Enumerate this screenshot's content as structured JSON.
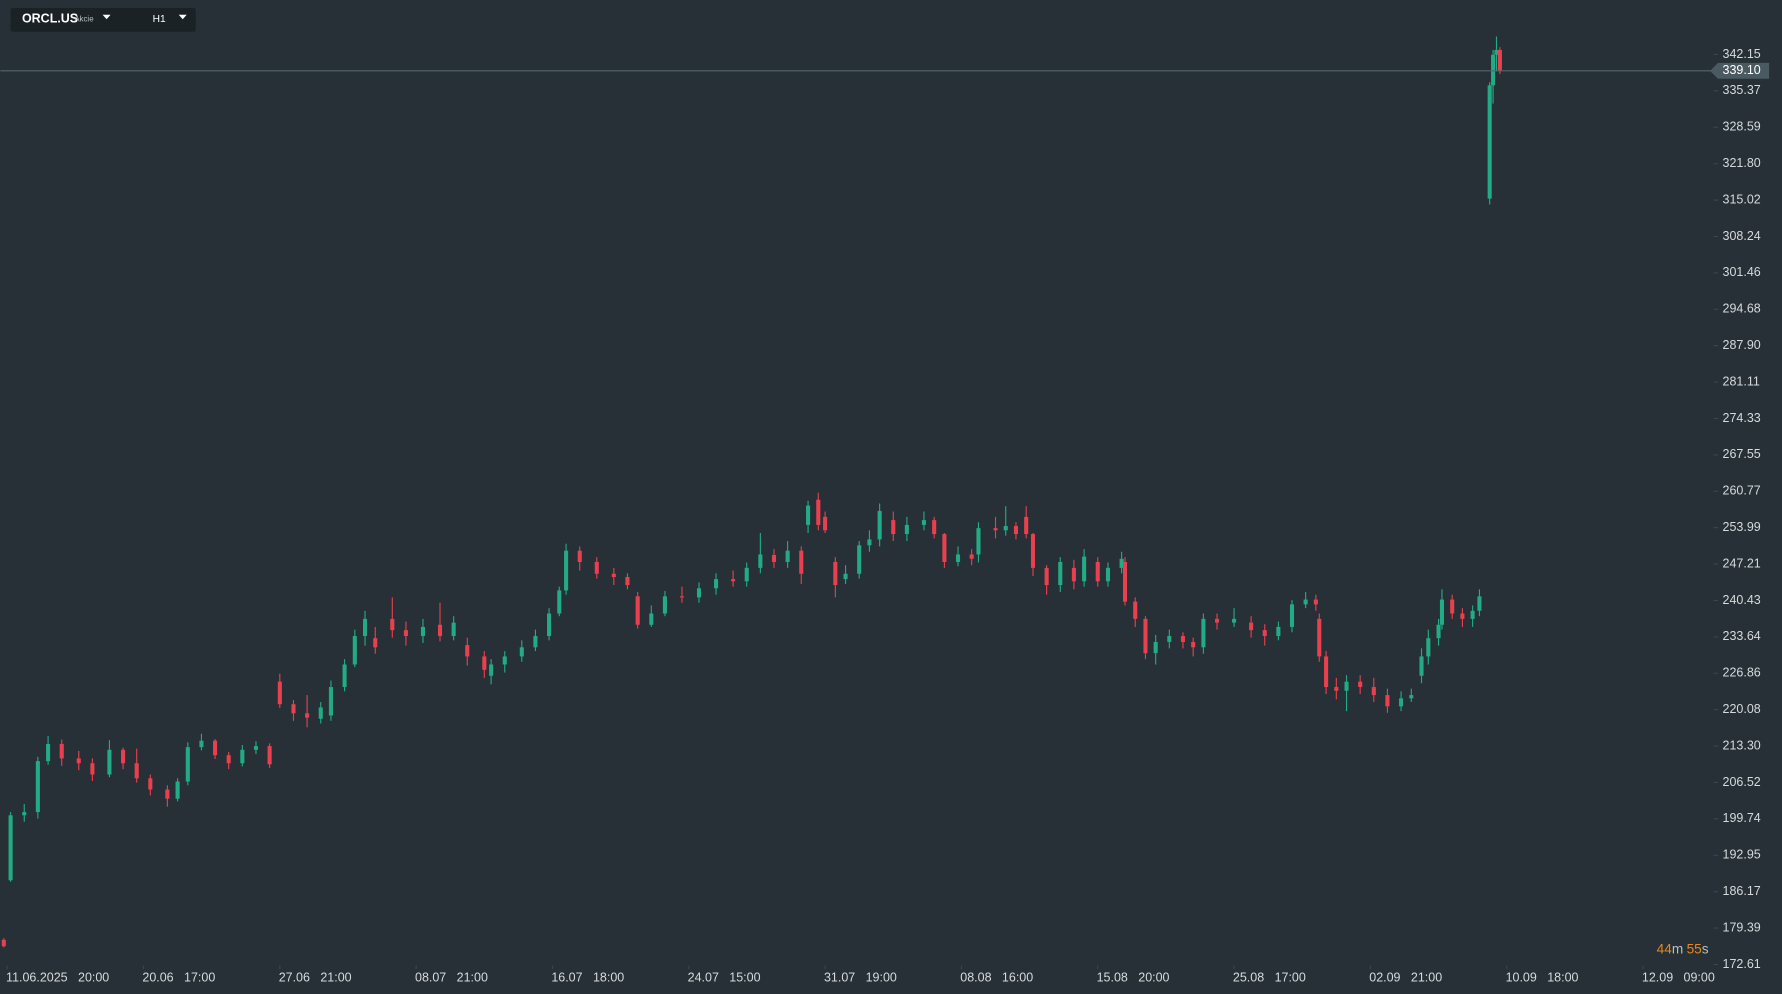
{
  "header": {
    "symbol": "ORCL.US",
    "asset_type": "Akcie",
    "timeframe": "H1"
  },
  "countdown": {
    "minutes": "44",
    "minutes_unit": "m",
    "seconds": "55",
    "seconds_unit": "s"
  },
  "chart_data": {
    "type": "candlestick",
    "up_color": "#22ab84",
    "down_color": "#e8404e",
    "price_line": {
      "value": 339.1,
      "label": "339.10"
    },
    "x": [
      1,
      3,
      7,
      11,
      14,
      18,
      23,
      27,
      32,
      36,
      40,
      44,
      49,
      52,
      55,
      59,
      63,
      67,
      71,
      75,
      79,
      82,
      86,
      90,
      94,
      97,
      101,
      104,
      107,
      110,
      115,
      119,
      124,
      129,
      133,
      137,
      142,
      144,
      148,
      153,
      157,
      161,
      164,
      166,
      170,
      175,
      180,
      184,
      187,
      191,
      195,
      200,
      205,
      210,
      215,
      219,
      223,
      227,
      231,
      235,
      237,
      240,
      242,
      245,
      248,
      252,
      255,
      258,
      262,
      266,
      271,
      274,
      277,
      281,
      285,
      287,
      292,
      295,
      298,
      301,
      303,
      307,
      311,
      315,
      318,
      322,
      325,
      329,
      330,
      333,
      336,
      339,
      343,
      347,
      350,
      353,
      357,
      362,
      367,
      371,
      375,
      379,
      383,
      386,
      387,
      389,
      392,
      395,
      399,
      403,
      407,
      411,
      414,
      417,
      419,
      422,
      423,
      426,
      429,
      432,
      434,
      437,
      438,
      439,
      440
    ],
    "open": [
      177.2,
      188.3,
      200.4,
      201.0,
      210.5,
      213.7,
      211.0,
      210.1,
      208.0,
      212.6,
      210.1,
      207.3,
      205.2,
      203.5,
      206.7,
      213.1,
      214.3,
      211.6,
      210.1,
      212.6,
      213.3,
      225.3,
      221.1,
      219.4,
      218.4,
      219.0,
      224.3,
      228.5,
      233.8,
      233.4,
      237.0,
      234.9,
      233.8,
      235.9,
      233.8,
      232.1,
      230.0,
      226.4,
      228.5,
      230.0,
      231.7,
      233.8,
      238.0,
      242.3,
      249.7,
      247.6,
      245.4,
      244.8,
      241.2,
      235.9,
      238.0,
      241.2,
      241.0,
      242.7,
      244.4,
      244.0,
      246.5,
      248.9,
      247.6,
      249.7,
      254.5,
      259.2,
      256.0,
      247.6,
      244.4,
      245.4,
      250.7,
      251.8,
      255.4,
      252.8,
      254.5,
      255.4,
      252.8,
      247.6,
      249.0,
      249.0,
      253.9,
      253.5,
      254.3,
      256.0,
      252.8,
      246.5,
      243.3,
      246.5,
      244.0,
      247.6,
      244.0,
      246.5,
      247.6,
      240.2,
      237.0,
      230.6,
      232.7,
      233.8,
      232.7,
      231.7,
      237.0,
      236.3,
      236.3,
      234.9,
      233.8,
      235.5,
      239.7,
      240.6,
      237.0,
      230.0,
      224.3,
      223.6,
      225.3,
      224.3,
      222.8,
      220.7,
      222.2,
      226.4,
      230.0,
      233.4,
      235.9,
      240.6,
      238.0,
      237.0,
      238.5,
      315.3,
      336.4,
      342.1,
      343.0
    ],
    "high": [
      177.5,
      201.0,
      202.5,
      211.3,
      215.2,
      214.5,
      212.4,
      211.0,
      214.4,
      213.0,
      212.8,
      208.0,
      206.0,
      207.3,
      214.0,
      215.6,
      214.6,
      212.2,
      213.5,
      214.2,
      213.8,
      226.8,
      221.9,
      222.8,
      221.5,
      225.5,
      229.5,
      235.0,
      238.5,
      235.5,
      241.0,
      236.5,
      237.0,
      240.0,
      237.5,
      233.5,
      231.0,
      229.5,
      231.0,
      233.0,
      235.0,
      239.0,
      243.0,
      251.0,
      250.5,
      248.5,
      246.5,
      245.5,
      242.0,
      239.5,
      242.2,
      243.0,
      243.8,
      245.5,
      246.0,
      247.5,
      253.0,
      250.0,
      251.5,
      250.5,
      259.0,
      260.5,
      257.0,
      248.5,
      247.0,
      251.5,
      253.5,
      258.5,
      257.0,
      256.0,
      257.0,
      256.0,
      253.0,
      250.5,
      250.0,
      255.0,
      256.0,
      258.0,
      255.0,
      258.0,
      253.0,
      247.0,
      248.5,
      248.0,
      250.0,
      248.5,
      247.5,
      249.5,
      248.5,
      241.0,
      237.5,
      234.0,
      235.0,
      234.5,
      233.5,
      238.0,
      238.0,
      239.0,
      237.5,
      236.0,
      236.5,
      240.5,
      242.0,
      241.5,
      238.0,
      231.0,
      226.0,
      226.5,
      226.5,
      226.0,
      224.0,
      223.5,
      224.0,
      231.5,
      235.0,
      237.0,
      242.5,
      241.5,
      239.0,
      239.5,
      242.5,
      337.0,
      343.0,
      345.5,
      343.5
    ],
    "low": [
      175.8,
      188.0,
      199.2,
      199.8,
      209.8,
      209.6,
      208.8,
      206.8,
      207.5,
      209.0,
      206.5,
      204.1,
      202.0,
      203.0,
      206.0,
      212.5,
      210.9,
      209.0,
      209.5,
      211.8,
      209.2,
      220.4,
      218.0,
      216.8,
      217.5,
      218.0,
      223.5,
      228.0,
      232.0,
      230.5,
      233.5,
      232.0,
      232.5,
      232.8,
      233.0,
      228.3,
      226.0,
      224.8,
      227.0,
      229.0,
      231.0,
      233.0,
      237.5,
      241.5,
      246.0,
      244.5,
      243.3,
      242.5,
      235.2,
      235.5,
      237.5,
      240.0,
      240.0,
      241.5,
      243.0,
      243.0,
      245.5,
      246.5,
      246.5,
      243.5,
      253.0,
      253.5,
      253.0,
      241.0,
      243.5,
      244.5,
      249.5,
      250.5,
      251.5,
      251.5,
      253.5,
      252.0,
      246.5,
      246.8,
      247.0,
      247.5,
      252.0,
      252.5,
      251.8,
      252.0,
      245.0,
      241.5,
      242.0,
      242.5,
      243.0,
      243.0,
      243.0,
      245.5,
      239.5,
      235.5,
      229.5,
      228.5,
      231.5,
      231.5,
      230.0,
      230.5,
      235.0,
      235.5,
      233.5,
      232.0,
      233.0,
      234.5,
      239.0,
      238.5,
      229.0,
      223.0,
      222.0,
      219.8,
      223.0,
      221.5,
      219.5,
      219.8,
      221.5,
      225.0,
      228.5,
      232.0,
      235.0,
      237.0,
      235.5,
      235.5,
      237.5,
      314.2,
      333.0,
      339.0,
      338.5
    ],
    "close": [
      176.0,
      200.4,
      201.0,
      210.5,
      213.7,
      211.0,
      210.1,
      208.0,
      212.6,
      210.1,
      207.3,
      205.2,
      203.5,
      206.7,
      213.1,
      214.3,
      211.6,
      210.1,
      212.6,
      213.3,
      209.9,
      221.1,
      219.4,
      218.6,
      220.5,
      224.3,
      228.5,
      233.8,
      237.0,
      231.7,
      234.9,
      233.8,
      235.5,
      233.8,
      236.3,
      230.0,
      227.5,
      228.5,
      230.0,
      231.7,
      233.8,
      238.0,
      242.3,
      249.7,
      247.6,
      245.4,
      244.8,
      243.3,
      235.9,
      238.0,
      241.2,
      241.0,
      242.7,
      244.4,
      244.0,
      246.5,
      249.0,
      247.6,
      249.7,
      245.4,
      258.1,
      254.5,
      253.5,
      243.3,
      245.4,
      250.7,
      251.8,
      257.1,
      252.8,
      254.5,
      255.4,
      252.8,
      247.6,
      249.0,
      248.2,
      253.9,
      253.5,
      254.3,
      252.8,
      252.8,
      246.5,
      243.3,
      247.6,
      244.0,
      248.6,
      244.0,
      246.5,
      248.2,
      240.2,
      237.0,
      230.6,
      232.7,
      233.8,
      232.7,
      231.7,
      237.0,
      236.3,
      237.0,
      234.9,
      233.8,
      235.5,
      239.7,
      240.6,
      239.7,
      230.0,
      224.3,
      223.6,
      225.3,
      224.3,
      222.8,
      220.7,
      222.2,
      222.8,
      230.0,
      233.4,
      235.9,
      240.6,
      238.0,
      237.0,
      238.5,
      241.2,
      336.4,
      342.1,
      343.0,
      339.1
    ],
    "xlim": [
      0,
      502
    ],
    "ylim": [
      172.4,
      352.3
    ],
    "yticks": [
      342.15,
      335.37,
      328.59,
      {
        "value": 321.8,
        "label": "321.80"
      },
      315.02,
      308.24,
      301.46,
      294.68,
      {
        "value": 287.9,
        "label": "287.90"
      },
      281.11,
      274.33,
      267.55,
      260.77,
      253.99,
      247.21,
      240.43,
      233.64,
      226.86,
      220.08,
      {
        "value": 213.3,
        "label": "213.30"
      },
      206.52,
      199.74,
      192.95,
      186.17,
      179.39,
      172.61
    ],
    "xticks": [
      {
        "value": 2,
        "label": "11.06.2025   20:00"
      },
      {
        "value": 42,
        "label": "20.06   17:00"
      },
      {
        "value": 82,
        "label": "27.06   21:00"
      },
      {
        "value": 122,
        "label": "08.07   21:00"
      },
      {
        "value": 162,
        "label": "16.07   18:00"
      },
      {
        "value": 202,
        "label": "24.07   15:00"
      },
      {
        "value": 242,
        "label": "31.07   19:00"
      },
      {
        "value": 282,
        "label": "08.08   16:00"
      },
      {
        "value": 322,
        "label": "15.08   20:00"
      },
      {
        "value": 362,
        "label": "25.08   17:00"
      },
      {
        "value": 402,
        "label": "02.09   21:00"
      },
      {
        "value": 442,
        "label": "10.09   18:00"
      },
      {
        "value": 482,
        "label": "12.09   09:00"
      }
    ]
  }
}
